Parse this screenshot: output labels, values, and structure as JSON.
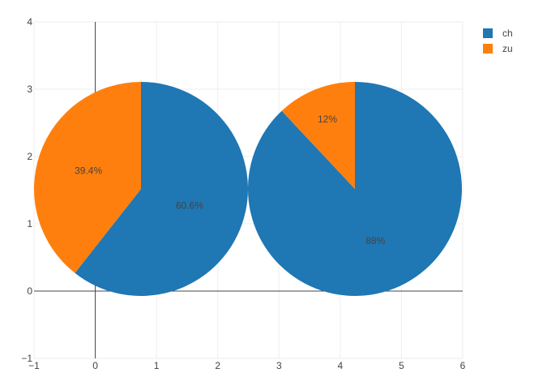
{
  "chart_data": {
    "type": "pie",
    "xlim": [
      -1,
      6
    ],
    "ylim": [
      -1,
      4
    ],
    "x_ticks": [
      -1,
      0,
      1,
      2,
      3,
      4,
      5,
      6
    ],
    "y_ticks": [
      -1,
      0,
      1,
      2,
      3,
      4
    ],
    "x_tick_labels": [
      "−1",
      "0",
      "1",
      "2",
      "3",
      "4",
      "5",
      "6"
    ],
    "y_tick_labels": [
      "−1",
      "0",
      "1",
      "2",
      "3",
      "4"
    ],
    "grid": true,
    "legend_position": "top-right",
    "legend": [
      {
        "name": "ch",
        "color": "#1f77b4"
      },
      {
        "name": "zu",
        "color": "#ff7f0e"
      }
    ],
    "pies": [
      {
        "slices": [
          {
            "name": "ch",
            "value": 60.6,
            "label": "60.6%",
            "color": "#1f77b4"
          },
          {
            "name": "zu",
            "value": 39.4,
            "label": "39.4%",
            "color": "#ff7f0e"
          }
        ]
      },
      {
        "slices": [
          {
            "name": "ch",
            "value": 88,
            "label": "88%",
            "color": "#1f77b4"
          },
          {
            "name": "zu",
            "value": 12,
            "label": "12%",
            "color": "#ff7f0e"
          }
        ]
      }
    ]
  }
}
